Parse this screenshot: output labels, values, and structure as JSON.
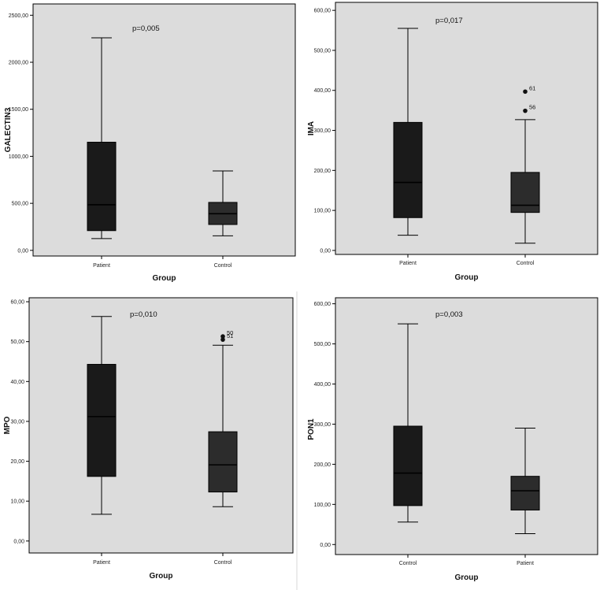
{
  "figure": {
    "background": "#ffffff",
    "plot_background": "#dcdcdc",
    "box_colors": [
      "#1a1a1a",
      "#2c2c2c"
    ]
  },
  "chart_data": [
    {
      "type": "box",
      "ylabel": "GALECTIN3",
      "xlabel": "Group",
      "annotation": "p=0,005",
      "ylim": [
        -60,
        2620
      ],
      "yticks": [
        0,
        500,
        1000,
        1500,
        2000,
        2500
      ],
      "ytick_labels": [
        "0,00",
        "500,00",
        "1000,00",
        "1500,00",
        "2000,00",
        "2500,00"
      ],
      "categories": [
        "Patient",
        "Control"
      ],
      "boxes": [
        {
          "category": "Patient",
          "min": 125,
          "q1": 210,
          "median": 485,
          "q3": 1150,
          "max": 2260,
          "outliers": []
        },
        {
          "category": "Control",
          "min": 155,
          "q1": 275,
          "median": 390,
          "q3": 510,
          "max": 845,
          "outliers": []
        }
      ]
    },
    {
      "type": "box",
      "ylabel": "IMA",
      "xlabel": "Group",
      "annotation": "p=0,017",
      "ylim": [
        -10,
        620
      ],
      "yticks": [
        0,
        100,
        200,
        300,
        400,
        500,
        600
      ],
      "ytick_labels": [
        "0,00",
        "100,00",
        "200,00",
        "300,00",
        "400,00",
        "500,00",
        "600,00"
      ],
      "categories": [
        "Patient",
        "Control"
      ],
      "boxes": [
        {
          "category": "Patient",
          "min": 38,
          "q1": 82,
          "median": 170,
          "q3": 320,
          "max": 555,
          "outliers": []
        },
        {
          "category": "Control",
          "min": 18,
          "q1": 95,
          "median": 113,
          "q3": 195,
          "max": 327,
          "outliers": [
            {
              "value": 397,
              "label": "61"
            },
            {
              "value": 349,
              "label": "56"
            }
          ]
        }
      ]
    },
    {
      "type": "box",
      "ylabel": "MPO",
      "xlabel": "Group",
      "annotation": "p=0,010",
      "ylim": [
        -3,
        61
      ],
      "yticks": [
        0,
        10,
        20,
        30,
        40,
        50,
        60
      ],
      "ytick_labels": [
        "0,00",
        "10,00",
        "20,00",
        "30,00",
        "40,00",
        "50,00",
        "60,00"
      ],
      "categories": [
        "Patient",
        "Control"
      ],
      "boxes": [
        {
          "category": "Patient",
          "min": 6.7,
          "q1": 16.2,
          "median": 31.2,
          "q3": 44.3,
          "max": 56.3,
          "outliers": []
        },
        {
          "category": "Control",
          "min": 8.6,
          "q1": 12.3,
          "median": 19.1,
          "q3": 27.4,
          "max": 49.1,
          "outliers": [
            {
              "value": 51.3,
              "label": "50"
            },
            {
              "value": 50.5,
              "label": "51"
            }
          ]
        }
      ]
    },
    {
      "type": "box",
      "ylabel": "PON1",
      "xlabel": "Group",
      "annotation": "p=0,003",
      "ylim": [
        -25,
        615
      ],
      "yticks": [
        0,
        100,
        200,
        300,
        400,
        500,
        600
      ],
      "ytick_labels": [
        "0,00",
        "100,00",
        "200,00",
        "300,00",
        "400,00",
        "500,00",
        "600,00"
      ],
      "categories": [
        "Control",
        "Patient"
      ],
      "boxes": [
        {
          "category": "Control",
          "min": 56,
          "q1": 97,
          "median": 178,
          "q3": 295,
          "max": 550,
          "outliers": []
        },
        {
          "category": "Patient",
          "min": 27,
          "q1": 86,
          "median": 134,
          "q3": 170,
          "max": 290,
          "outliers": []
        }
      ]
    }
  ]
}
